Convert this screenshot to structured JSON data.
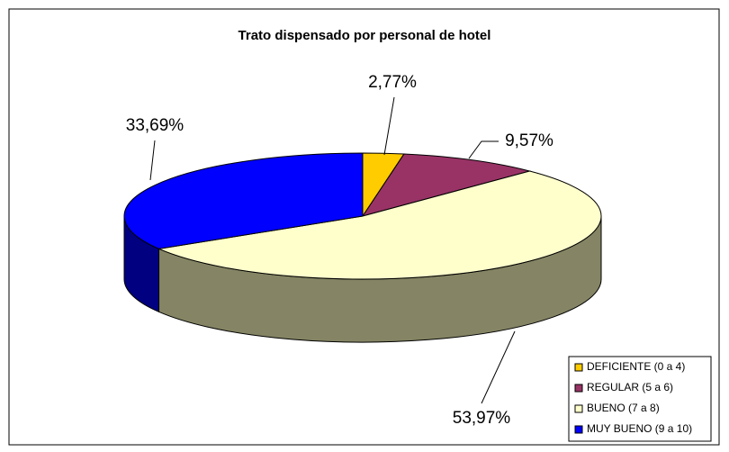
{
  "chart_data": {
    "type": "pie",
    "title": "Trato dispensado por personal de hotel",
    "categories": [
      "DEFICIENTE (0 a 4)",
      "REGULAR (5 a 6)",
      "BUENO (7 a 8)",
      "MUY BUENO (9 a 10)"
    ],
    "values": [
      2.77,
      9.57,
      53.97,
      33.69
    ],
    "value_labels": [
      "2,77%",
      "9,57%",
      "53,97%",
      "33,69%"
    ],
    "colors": [
      "#ffcc00",
      "#993366",
      "#ffffcc",
      "#0000ff"
    ],
    "side_colors": [
      "#806600",
      "#4d1a33",
      "#858565",
      "#000080"
    ],
    "legend": "bottom-right"
  }
}
